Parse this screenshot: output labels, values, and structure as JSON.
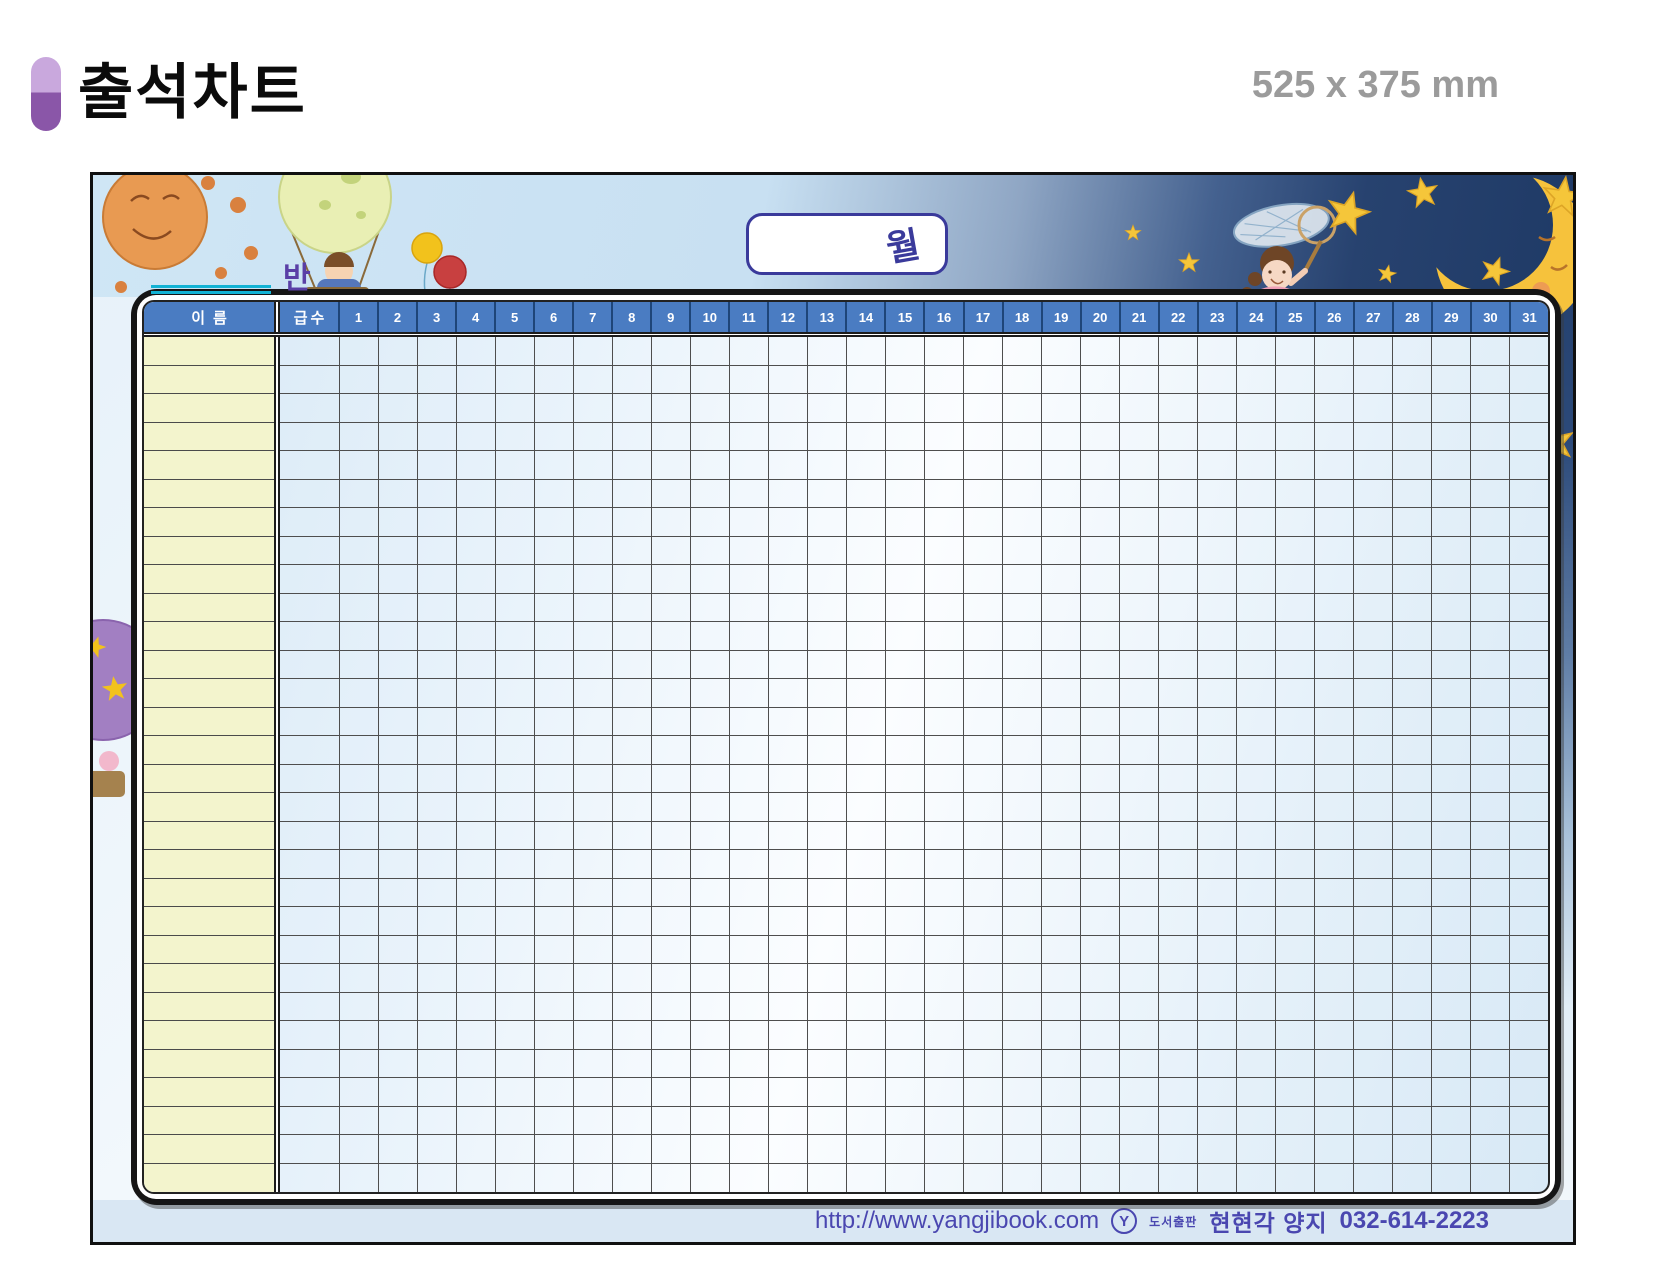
{
  "page": {
    "title": "출석차트",
    "size_label": "525 x 375 mm"
  },
  "chart": {
    "class_label": "반",
    "month_label": "월"
  },
  "table": {
    "name_header": "이름",
    "level_header": "급수",
    "days": [
      "1",
      "2",
      "3",
      "4",
      "5",
      "6",
      "7",
      "8",
      "9",
      "10",
      "11",
      "12",
      "13",
      "14",
      "15",
      "16",
      "17",
      "18",
      "19",
      "20",
      "21",
      "22",
      "23",
      "24",
      "25",
      "26",
      "27",
      "28",
      "29",
      "30",
      "31"
    ],
    "row_count": 30
  },
  "footer": {
    "url": "http://www.yangjibook.com",
    "logo_letter": "Y",
    "publisher_prefix": "도서출판",
    "publisher": "현현각 양지",
    "phone": "032-614-2223"
  },
  "decorations": [
    "sun-icon",
    "hot-air-balloon-boy-icon",
    "balloons-icon",
    "purple-hot-air-balloon-icon",
    "girl-with-butterfly-net-icon",
    "crescent-moon-icon",
    "stars-icon",
    "publisher-logo-icon"
  ],
  "colors": {
    "accent_purple": "#8a56a8",
    "accent_purple_light": "#c9a8dd",
    "size_text_gray": "#9b9b9b",
    "header_blue": "#4a7cc2",
    "header_text": "#ffffff",
    "name_cell_yellow": "#f3f4cd",
    "grid_cell_blue": "#ddecf8",
    "day_sky_blue": "#cfe6f5",
    "night_sky_navy": "#1f3a66",
    "teal_underline": "#12b2d4",
    "month_text_blue": "#3a3a9b",
    "class_text_purple": "#5a3fa6",
    "footer_strip_blue": "#d9e7f3",
    "footer_text_purple": "#4a47b0"
  }
}
